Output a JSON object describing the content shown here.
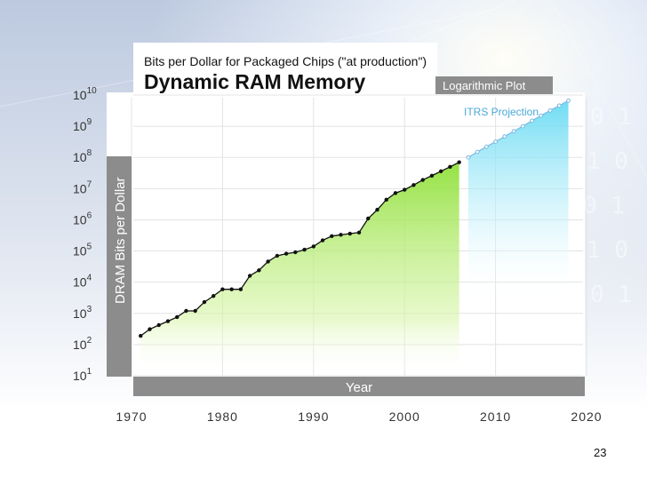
{
  "page_number": "23",
  "colors": {
    "actual_fill": "#bdf07a",
    "projection_fill": "#8fe4f6",
    "axis_bar": "#8c8c8c",
    "line": "#111111",
    "projection_line": "#7ab8e0"
  },
  "chart_data": {
    "type": "line",
    "subtitle": "Bits per Dollar for Packaged Chips (\"at production\")",
    "title": "Dynamic RAM Memory",
    "scale_label": "Logarithmic Plot",
    "xlabel": "Year",
    "ylabel": "DRAM Bits per Dollar",
    "xlim": [
      1970,
      2020
    ],
    "ylim": [
      10,
      10000000000
    ],
    "y_scale": "log",
    "grid": true,
    "x_ticks": [
      "1970",
      "1980",
      "1990",
      "2000",
      "2010",
      "2020"
    ],
    "y_ticks": [
      {
        "base": "10",
        "exp": "10"
      },
      {
        "base": "10",
        "exp": "9"
      },
      {
        "base": "10",
        "exp": "8"
      },
      {
        "base": "10",
        "exp": "7"
      },
      {
        "base": "10",
        "exp": "6"
      },
      {
        "base": "10",
        "exp": "5"
      },
      {
        "base": "10",
        "exp": "4"
      },
      {
        "base": "10",
        "exp": "3"
      },
      {
        "base": "10",
        "exp": "2"
      },
      {
        "base": "10",
        "exp": "1"
      }
    ],
    "series": [
      {
        "x": [
          1971,
          1972,
          1973,
          1974,
          1975,
          1976,
          1977,
          1978,
          1979,
          1980,
          1981,
          1982,
          1983,
          1984,
          1985,
          1986,
          1987,
          1988,
          1989,
          1990,
          1991,
          1992,
          1993,
          1994,
          1995,
          1996,
          1997,
          1998,
          1999,
          2000,
          2001,
          2002,
          2003,
          2004,
          2005,
          2006
        ],
        "y": [
          190,
          310,
          420,
          560,
          760,
          1200,
          1200,
          2300,
          3600,
          5900,
          5900,
          5900,
          16000,
          24000,
          46000,
          70000,
          82000,
          91000,
          110000,
          140000,
          220000,
          300000,
          330000,
          360000,
          390000,
          1100000,
          2100000,
          4400000,
          7200000,
          9200000,
          13000000,
          19000000,
          26000000,
          36000000,
          50000000,
          70000000
        ]
      },
      {
        "name": "ITRS Projection",
        "x": [
          2007,
          2008,
          2009,
          2010,
          2011,
          2012,
          2013,
          2014,
          2015,
          2016,
          2017,
          2018
        ],
        "y": [
          100000000,
          150000000,
          220000000,
          320000000,
          470000000,
          690000000,
          1000000000,
          1500000000,
          2200000000,
          3200000000,
          4600000000,
          6600000000
        ]
      }
    ]
  }
}
